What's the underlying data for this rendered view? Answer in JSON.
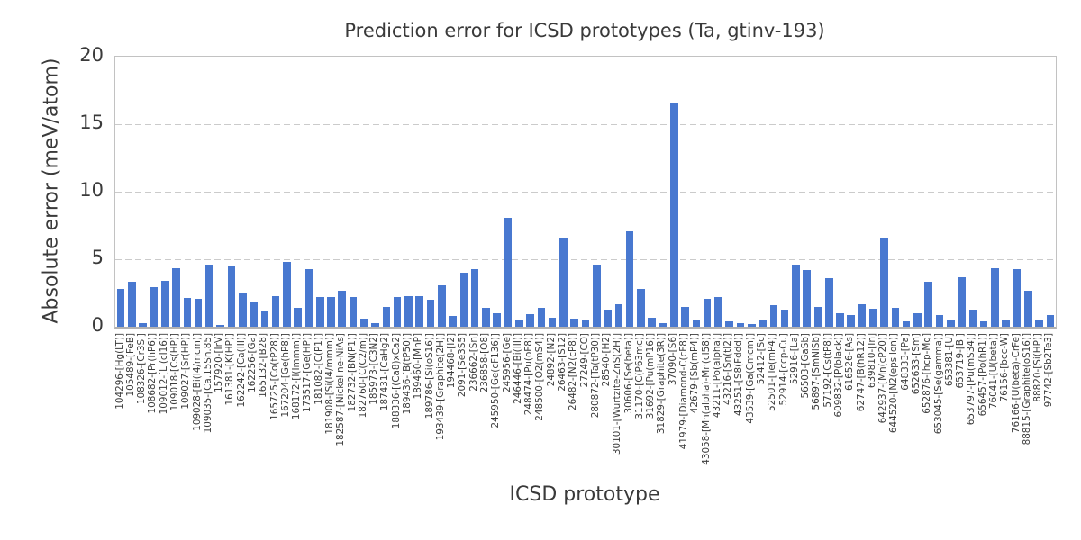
{
  "chart_data": {
    "type": "bar",
    "title": "Prediction error for ICSD prototypes (Ta, gtinv-193)",
    "xlabel": "ICSD prototype",
    "ylabel": "Absolute error (meV/atom)",
    "ylim": [
      0,
      20
    ],
    "yticks": [
      0,
      5,
      10,
      15,
      20
    ],
    "grid": "horizontal-dashed",
    "legend": "none",
    "bar_color": "#4878d0",
    "grid_color": "#cbcbcb",
    "text_color": "#3a3a3a",
    "categories": [
      "104296-[Hg(LT)]",
      "105489-[FeB]",
      "108326-[Cr3Si]",
      "108682-[Pr(hP6)]",
      "109012-[Li(cI16)]",
      "109018-[Cs(HP)]",
      "109027-[Sr(HP)]",
      "109028-[Bi(I4/mcm)]",
      "109035-[Ca.15Sn.85]",
      "157920-[IrV]",
      "161381-[K(HP)]",
      "162242-[Ca(III)]",
      "162256-[Ga]",
      "165132-[B28]",
      "165725-[Co(tP28)]",
      "167204-[Ge(hP8)]",
      "168172-[I(Immm)]",
      "173517-[Ge(HP)]",
      "181082-[C(P1)]",
      "181908-[Si(I4/mmm)]",
      "182587-[Nickeline-NiAs]",
      "182732-[BN(P1)]",
      "182760-[C(C2/m)]",
      "185973-[C3N2]",
      "187431-[CaHg2]",
      "188336-[(Ca8)xCa2]",
      "189436-[B(tP50)]",
      "189460-[MnP]",
      "189786-[Si(oS16)]",
      "193439-[Graphite(2H)]",
      "194468-[I2]",
      "2091-[Se3S5]",
      "236662-[Sn]",
      "236858-[O8]",
      "245950-[Ge(cF136)]",
      "245956-[Ge]",
      "246446-[Bi(III)]",
      "248474-[Pu(oF8)]",
      "248500-[O2(mS4)]",
      "24892-[N2]",
      "26463-[S12]",
      "26482-[N2(cP8)]",
      "27249-[CO]",
      "280872-[Ta(tP30)]",
      "28540-[H2]",
      "30101-[Wurtzite-ZnS(2H)]",
      "30606-[Se(beta)]",
      "31170-[C(P63mc)]",
      "31692-[Pu(mP16)]",
      "31829-[Graphite(3R)]",
      "37090-[S6]",
      "41979-[Diamond-C(cF8)]",
      "42679-[Sb(mP4)]",
      "43058-[Mn(alpha)-Mn(cI58)]",
      "43211-[Po(alpha)]",
      "43216-[Sn(tI2)]",
      "43251-[S8(Fddd)]",
      "43539-[Ga(Cmcm)]",
      "52412-[Sc]",
      "52501-[Te(mP4)]",
      "52914-[ccp-Cu]",
      "52916-[La]",
      "56503-[GaSb]",
      "56897-[SmNiSb]",
      "57192-[Cs(tP8)]",
      "609832-[P(black)]",
      "616526-[As]",
      "62747-[B(hR12)]",
      "639810-[In]",
      "642937-[Mn(cP20)]",
      "644520-[N2(epsilon)]",
      "648333-[Pa]",
      "652633-[Sm]",
      "652876-[hcp-Mg]",
      "653045-[Se(gamma)]",
      "653381-[U]",
      "653719-[Bi]",
      "653797-[Pu(mS34)]",
      "656457-[Po(hR1)]",
      "76041-[U(beta)]",
      "76156-[bcc-W]",
      "76166-[U(beta)-CrFe]",
      "88815-[Graphite(oS16)]",
      "88820-[Si(HP)]",
      "97742-[Sb2Te3]"
    ],
    "values": [
      2.8,
      3.35,
      0.25,
      2.95,
      3.4,
      4.35,
      2.15,
      2.1,
      4.6,
      0.15,
      4.55,
      2.5,
      1.85,
      1.2,
      2.25,
      4.8,
      1.4,
      4.3,
      2.2,
      2.2,
      2.7,
      2.2,
      0.6,
      0.3,
      1.5,
      2.2,
      2.3,
      2.3,
      2.0,
      3.1,
      0.8,
      4.0,
      4.3,
      1.4,
      1.0,
      8.1,
      0.5,
      0.95,
      1.4,
      0.7,
      6.6,
      0.6,
      0.55,
      4.6,
      1.3,
      1.7,
      7.05,
      2.8,
      0.65,
      0.3,
      16.6,
      1.45,
      0.55,
      2.05,
      2.2,
      0.4,
      0.25,
      0.2,
      0.45,
      1.6,
      1.25,
      4.6,
      4.2,
      1.5,
      3.6,
      1.0,
      0.85,
      1.7,
      1.35,
      6.55,
      1.4,
      0.4,
      1.0,
      3.35,
      0.9,
      0.5,
      3.65,
      1.3,
      0.4,
      4.35,
      0.45,
      4.3,
      2.7,
      0.55,
      0.9
    ]
  }
}
